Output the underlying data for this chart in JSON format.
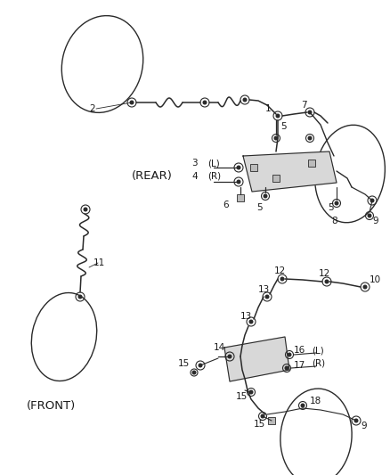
{
  "bg_color": "#ffffff",
  "line_color": "#2a2a2a",
  "text_color": "#1a1a1a",
  "figsize": [
    4.38,
    5.33
  ],
  "dpi": 100,
  "xlim": [
    0,
    438
  ],
  "ylim": [
    0,
    533
  ]
}
